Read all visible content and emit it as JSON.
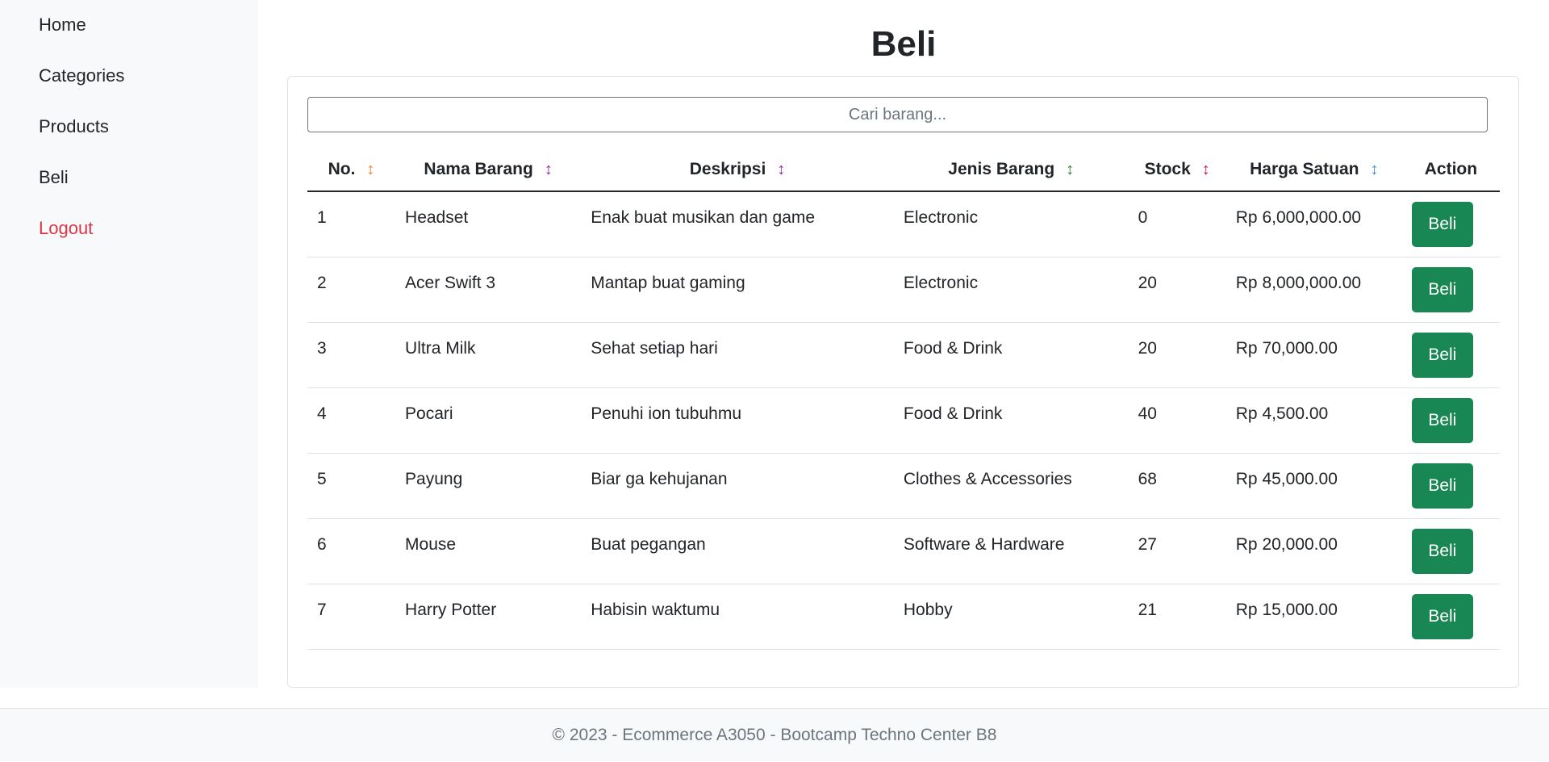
{
  "sidebar": {
    "items": [
      {
        "label": "Home"
      },
      {
        "label": "Categories"
      },
      {
        "label": "Products"
      },
      {
        "label": "Beli"
      },
      {
        "label": "Logout",
        "color": "#dc3545"
      }
    ]
  },
  "page": {
    "title": "Beli"
  },
  "search": {
    "placeholder": "Cari barang...",
    "value": ""
  },
  "table": {
    "columns": [
      {
        "label": "No.",
        "sort_color": "#e08a2c"
      },
      {
        "label": "Nama Barang",
        "sort_color": "#8e2a9a"
      },
      {
        "label": "Deskripsi",
        "sort_color": "#8e2a9a"
      },
      {
        "label": "Jenis Barang",
        "sort_color": "#2e7d32"
      },
      {
        "label": "Stock",
        "sort_color": "#c2185b"
      },
      {
        "label": "Harga Satuan",
        "sort_color": "#3a8fd6"
      },
      {
        "label": "Action"
      }
    ],
    "sort_icon": "↕",
    "rows": [
      {
        "no": "1",
        "name": "Headset",
        "desc": "Enak buat musikan dan game",
        "type": "Electronic",
        "stock": "0",
        "price": "Rp 6,000,000.00",
        "action": "Beli"
      },
      {
        "no": "2",
        "name": "Acer Swift 3",
        "desc": "Mantap buat gaming",
        "type": "Electronic",
        "stock": "20",
        "price": "Rp 8,000,000.00",
        "action": "Beli"
      },
      {
        "no": "3",
        "name": "Ultra Milk",
        "desc": "Sehat setiap hari",
        "type": "Food & Drink",
        "stock": "20",
        "price": "Rp 70,000.00",
        "action": "Beli"
      },
      {
        "no": "4",
        "name": "Pocari",
        "desc": "Penuhi ion tubuhmu",
        "type": "Food & Drink",
        "stock": "40",
        "price": "Rp 4,500.00",
        "action": "Beli"
      },
      {
        "no": "5",
        "name": "Payung",
        "desc": "Biar ga kehujanan",
        "type": "Clothes & Accessories",
        "stock": "68",
        "price": "Rp 45,000.00",
        "action": "Beli"
      },
      {
        "no": "6",
        "name": "Mouse",
        "desc": "Buat pegangan",
        "type": "Software & Hardware",
        "stock": "27",
        "price": "Rp 20,000.00",
        "action": "Beli"
      },
      {
        "no": "7",
        "name": "Harry Potter",
        "desc": "Habisin waktumu",
        "type": "Hobby",
        "stock": "21",
        "price": "Rp 15,000.00",
        "action": "Beli"
      }
    ]
  },
  "colors": {
    "button": "#198754",
    "sidebar_bg": "#f8f9fa"
  },
  "footer": {
    "text": "© 2023 - Ecommerce A3050 - Bootcamp Techno Center B8"
  }
}
